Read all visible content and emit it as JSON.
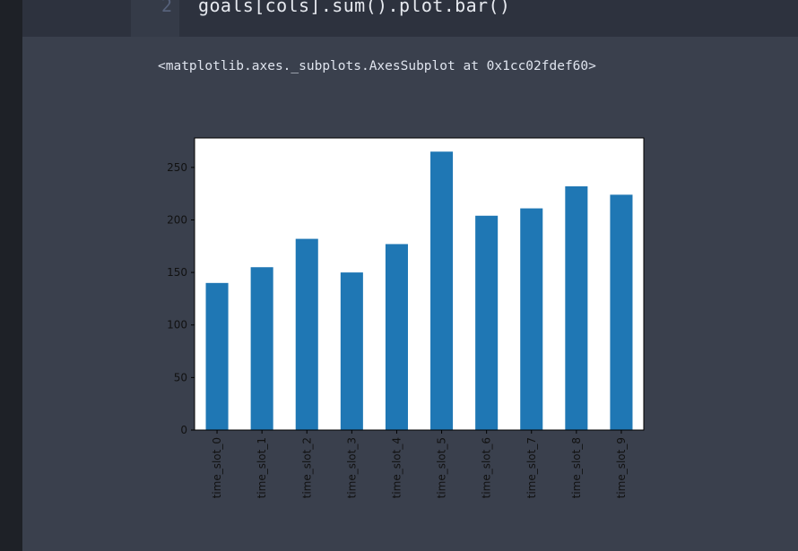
{
  "editor": {
    "line_number": "2",
    "code": "goals[cols].sum().plot.bar()"
  },
  "output": {
    "repr_text": "<matplotlib.axes._subplots.AxesSubplot at 0x1cc02fdef60>"
  },
  "chart_data": {
    "type": "bar",
    "categories": [
      "time_slot_0",
      "time_slot_1",
      "time_slot_2",
      "time_slot_3",
      "time_slot_4",
      "time_slot_5",
      "time_slot_6",
      "time_slot_7",
      "time_slot_8",
      "time_slot_9"
    ],
    "values": [
      140,
      155,
      182,
      150,
      177,
      265,
      204,
      211,
      232,
      224
    ],
    "ylim": [
      0,
      278
    ],
    "yticks": [
      0,
      50,
      100,
      150,
      200,
      250
    ],
    "bar_color": "#1f77b4",
    "grid": false,
    "title": "",
    "xlabel": "",
    "ylabel": ""
  }
}
